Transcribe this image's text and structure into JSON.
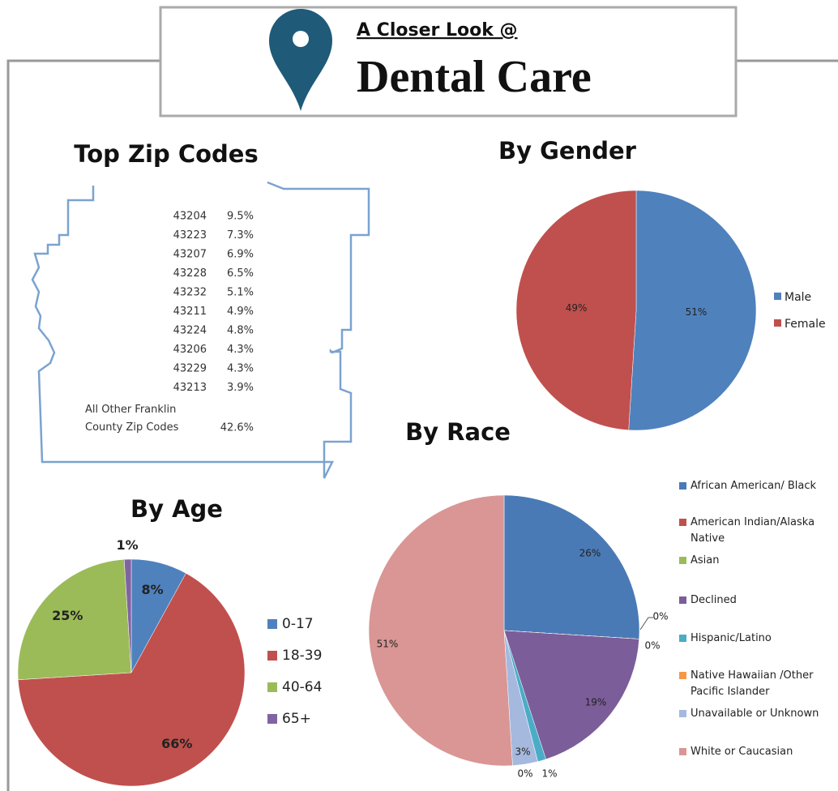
{
  "header": {
    "kicker": "A Closer Look @",
    "title": "Dental Care"
  },
  "zip_codes": {
    "title": "Top Zip Codes",
    "rows": [
      [
        "43204",
        "9.5%"
      ],
      [
        "43223",
        "7.3%"
      ],
      [
        "43207",
        "6.9%"
      ],
      [
        "43228",
        "6.5%"
      ],
      [
        "43232",
        "5.1%"
      ],
      [
        "43211",
        "4.9%"
      ],
      [
        "43224",
        "4.8%"
      ],
      [
        "43206",
        "4.3%"
      ],
      [
        "43229",
        "4.3%"
      ],
      [
        "43213",
        "3.9%"
      ]
    ],
    "other": [
      "All Other Franklin County Zip Codes",
      "42.6%"
    ]
  },
  "chart_data": [
    {
      "type": "pie",
      "title": "By Gender",
      "categories": [
        "Male",
        "Female"
      ],
      "values": [
        51,
        49
      ],
      "value_labels": [
        "51%",
        "49%"
      ],
      "colors": [
        "#4f81bd",
        "#c0504d"
      ],
      "legend": "right"
    },
    {
      "type": "pie",
      "title": "By Age",
      "categories": [
        "0-17",
        "18-39",
        "40-64",
        "65+"
      ],
      "values": [
        8,
        66,
        25,
        1
      ],
      "value_labels": [
        "8%",
        "66%",
        "25%",
        "1%"
      ],
      "colors": [
        "#4f81bd",
        "#c0504d",
        "#9bbb59",
        "#8064a2"
      ],
      "legend": "right"
    },
    {
      "type": "pie",
      "title": "By Race",
      "categories": [
        "African American/ Black",
        "American Indian/Alaska Native",
        "Asian",
        "Declined",
        "Hispanic/Latino",
        "Native Hawaiian /Other Pacific Islander",
        "Unavailable or Unknown",
        "White or Caucasian"
      ],
      "values": [
        26,
        0,
        0,
        19,
        1,
        0,
        3,
        51
      ],
      "value_labels": [
        "26%",
        "0%",
        "0%",
        "19%",
        "1%",
        "0%",
        "3%",
        "51%"
      ],
      "colors": [
        "#4a7ab5",
        "#c0504d",
        "#9bbb59",
        "#7b5d99",
        "#4bacc6",
        "#f79646",
        "#a5b9de",
        "#d99694"
      ],
      "legend": "right"
    }
  ]
}
